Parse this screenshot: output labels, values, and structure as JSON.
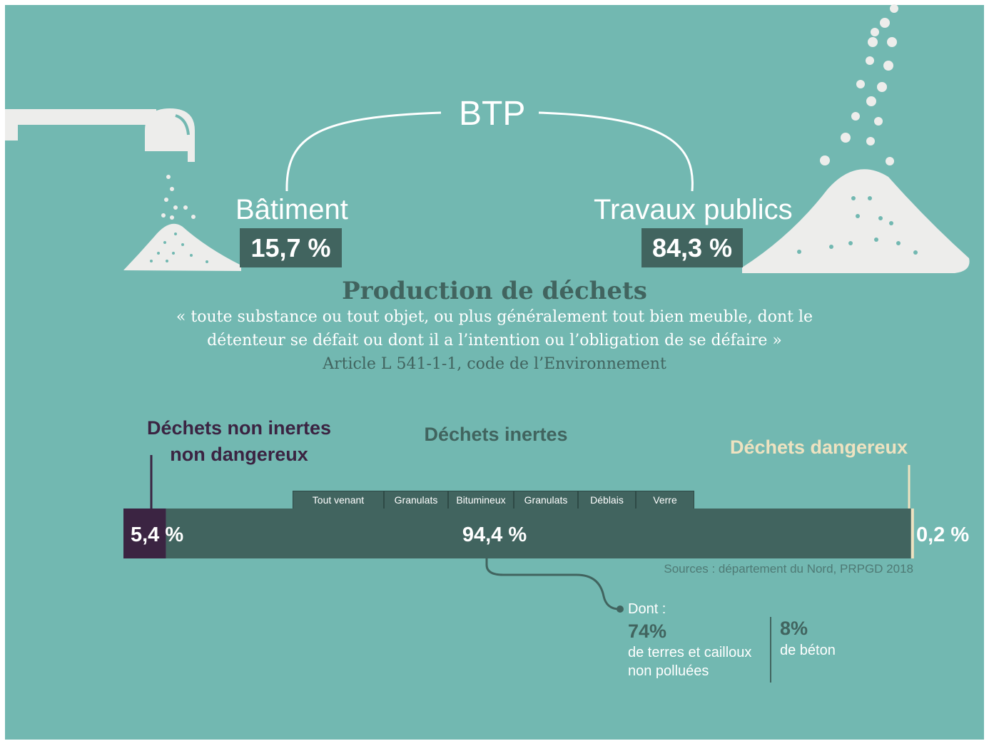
{
  "header": {
    "title": "BTP",
    "left_category": "Bâtiment",
    "left_value": "15,7 %",
    "right_category": "Travaux publics",
    "right_value": "84,3 %"
  },
  "definition": {
    "title": "Production de déchets",
    "quote_line1": "« toute substance ou tout objet, ou plus généralement tout bien meuble, dont le",
    "quote_line2": "détenteur se défait ou dont il a l’intention ou l’obligation de se défaire »",
    "source": "Article L 541-1-1, code de l’Environnement"
  },
  "chart_data": {
    "type": "bar",
    "orientation": "horizontal-stacked",
    "segments": [
      {
        "name_line1": "Déchets non inertes",
        "name_line2": "non dangereux",
        "value": 5.4,
        "label": "5,4 %",
        "color": "#3b2442"
      },
      {
        "name": "Déchets inertes",
        "value": 94.4,
        "label": "94,4 %",
        "color": "#41645f"
      },
      {
        "name": "Déchets dangereux",
        "value": 0.2,
        "label": "0,2 %",
        "color": "#eee2c0"
      }
    ],
    "inert_subcategories": [
      "Tout venant",
      "Granulats",
      "Bitumineux",
      "Granulats",
      "Déblais",
      "Verre"
    ],
    "source": "Sources : département du Nord, PRPGD 2018"
  },
  "detail": {
    "intro": "Dont :",
    "items": [
      {
        "value": "74%",
        "line1": "de terres et cailloux",
        "line2": "non polluées"
      },
      {
        "value": "8%",
        "line1": "de béton"
      }
    ]
  },
  "colors": {
    "background": "#72b8b1",
    "dark": "#41645f",
    "purple": "#3b2442",
    "cream": "#eee2c0",
    "light": "#ededeb"
  }
}
